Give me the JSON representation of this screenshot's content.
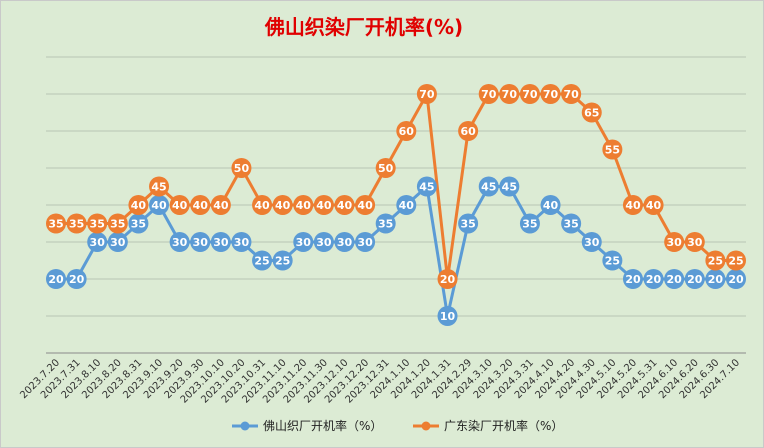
{
  "chart_data": {
    "type": "line",
    "title": "佛山织染厂开机率(%)",
    "xlabel": "",
    "ylabel": "",
    "ylim": [
      0,
      80
    ],
    "grid": true,
    "legend_position": "bottom",
    "categories": [
      "2023.7.20",
      "2023.7.31",
      "2023.8.10",
      "2023.8.20",
      "2023.8.31",
      "2023.9.10",
      "2023.9.20",
      "2023.9.30",
      "2023.10.10",
      "2023.10.20",
      "2023.10.31",
      "2023.11.10",
      "2023.11.20",
      "2023.11.30",
      "2023.12.10",
      "2023.12.20",
      "2023.12.31",
      "2024.1.10",
      "2024.1.20",
      "2024.1.31",
      "2024.2.29",
      "2024.3.10",
      "2024.3.20",
      "2024.3.31",
      "2024.4.10",
      "2024.4.20",
      "2024.4.30",
      "2024.5.10",
      "2024.5.20",
      "2024.5.31",
      "2024.6.10",
      "2024.6.20",
      "2024.6.30",
      "2024.7.10"
    ],
    "series": [
      {
        "name": "佛山织厂开机率（%）",
        "color": "#5b9bd5",
        "values": [
          20,
          20,
          30,
          30,
          35,
          40,
          30,
          30,
          30,
          30,
          25,
          25,
          30,
          30,
          30,
          30,
          35,
          40,
          45,
          10,
          35,
          45,
          45,
          35,
          40,
          35,
          30,
          25,
          20,
          20,
          20,
          20,
          20,
          20
        ]
      },
      {
        "name": "广东染厂开机率（%）",
        "color": "#ed7d31",
        "values": [
          35,
          35,
          35,
          35,
          40,
          45,
          40,
          40,
          40,
          50,
          40,
          40,
          40,
          40,
          40,
          40,
          50,
          60,
          70,
          20,
          60,
          70,
          70,
          70,
          70,
          70,
          65,
          55,
          40,
          40,
          30,
          30,
          25,
          25
        ]
      }
    ]
  }
}
